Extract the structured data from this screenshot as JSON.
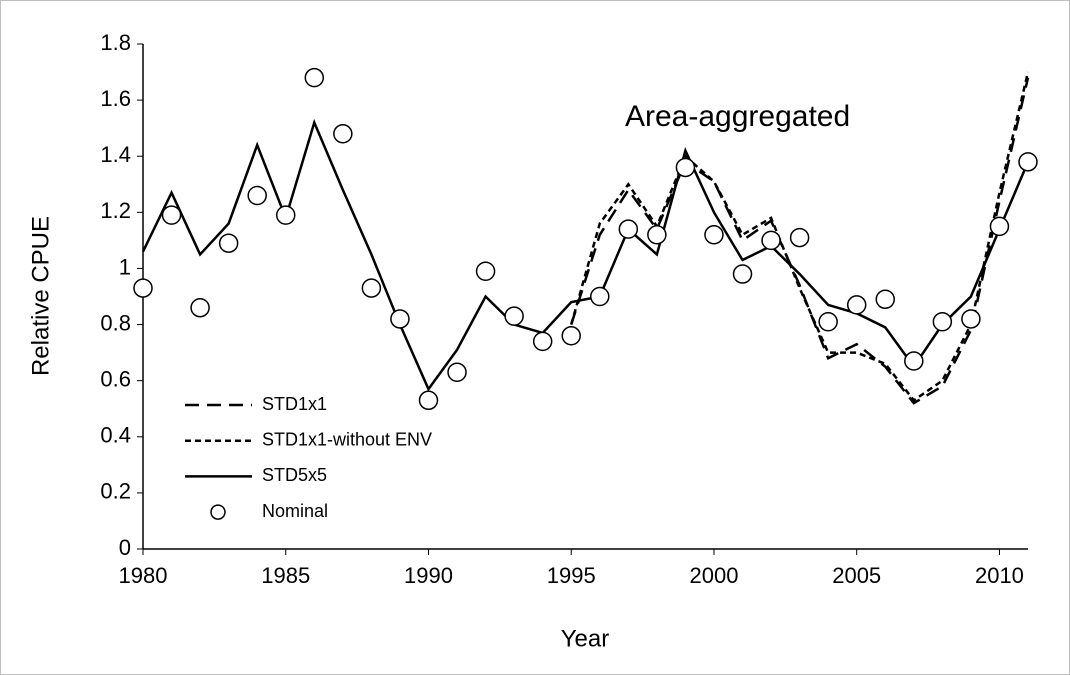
{
  "chart_data": {
    "type": "line",
    "annotation": "Area-aggregated",
    "x_label": "Year",
    "y_label": "Relative CPUE",
    "x": [
      1980,
      1981,
      1982,
      1983,
      1984,
      1985,
      1986,
      1987,
      1988,
      1989,
      1990,
      1991,
      1992,
      1993,
      1994,
      1995,
      1996,
      1997,
      1998,
      1999,
      2000,
      2001,
      2002,
      2003,
      2004,
      2005,
      2006,
      2007,
      2008,
      2009,
      2010,
      2011
    ],
    "series": [
      {
        "name": "STD1x1",
        "color": "#000000",
        "dash": "14,8",
        "values": [
          null,
          null,
          null,
          null,
          null,
          null,
          null,
          null,
          null,
          null,
          null,
          null,
          null,
          null,
          null,
          0.8,
          1.12,
          1.28,
          1.14,
          1.38,
          1.31,
          1.1,
          1.17,
          0.94,
          0.68,
          0.73,
          0.65,
          0.52,
          0.58,
          0.78,
          1.24,
          1.68
        ]
      },
      {
        "name": "STD1x1-without ENV",
        "color": "#000000",
        "dash": "6,4",
        "values": [
          null,
          null,
          null,
          null,
          null,
          null,
          null,
          null,
          null,
          null,
          null,
          null,
          null,
          null,
          null,
          0.8,
          1.16,
          1.3,
          1.15,
          1.4,
          1.31,
          1.12,
          1.18,
          0.93,
          0.7,
          0.7,
          0.66,
          0.53,
          0.6,
          0.8,
          1.27,
          1.7
        ]
      },
      {
        "name": "STD5x5",
        "color": "#000000",
        "values": [
          1.06,
          1.27,
          1.05,
          1.16,
          1.44,
          1.18,
          1.52,
          1.28,
          1.05,
          0.8,
          0.57,
          0.71,
          0.9,
          0.8,
          0.77,
          0.88,
          0.9,
          1.14,
          1.05,
          1.42,
          1.2,
          1.03,
          1.08,
          0.98,
          0.87,
          0.84,
          0.79,
          0.65,
          0.8,
          0.9,
          1.14,
          1.38
        ]
      },
      {
        "name": "Nominal",
        "color": "#000000",
        "marker": "circle",
        "values": [
          0.93,
          1.19,
          0.86,
          1.09,
          1.26,
          1.19,
          1.68,
          1.48,
          0.93,
          0.82,
          0.53,
          0.63,
          0.99,
          0.83,
          0.74,
          0.76,
          0.9,
          1.14,
          1.12,
          1.36,
          1.12,
          0.98,
          1.1,
          1.11,
          0.81,
          0.87,
          0.89,
          0.67,
          0.81,
          0.82,
          1.15,
          1.38
        ]
      }
    ],
    "xlim": [
      1980,
      2011
    ],
    "xticks": [
      1980,
      1985,
      1990,
      1995,
      2000,
      2005,
      2010
    ],
    "ylim": [
      0,
      1.8
    ],
    "yticks": [
      0,
      0.2,
      0.4,
      0.6,
      0.8,
      1,
      1.2,
      1.4,
      1.6,
      1.8
    ],
    "legend": "lower left"
  }
}
